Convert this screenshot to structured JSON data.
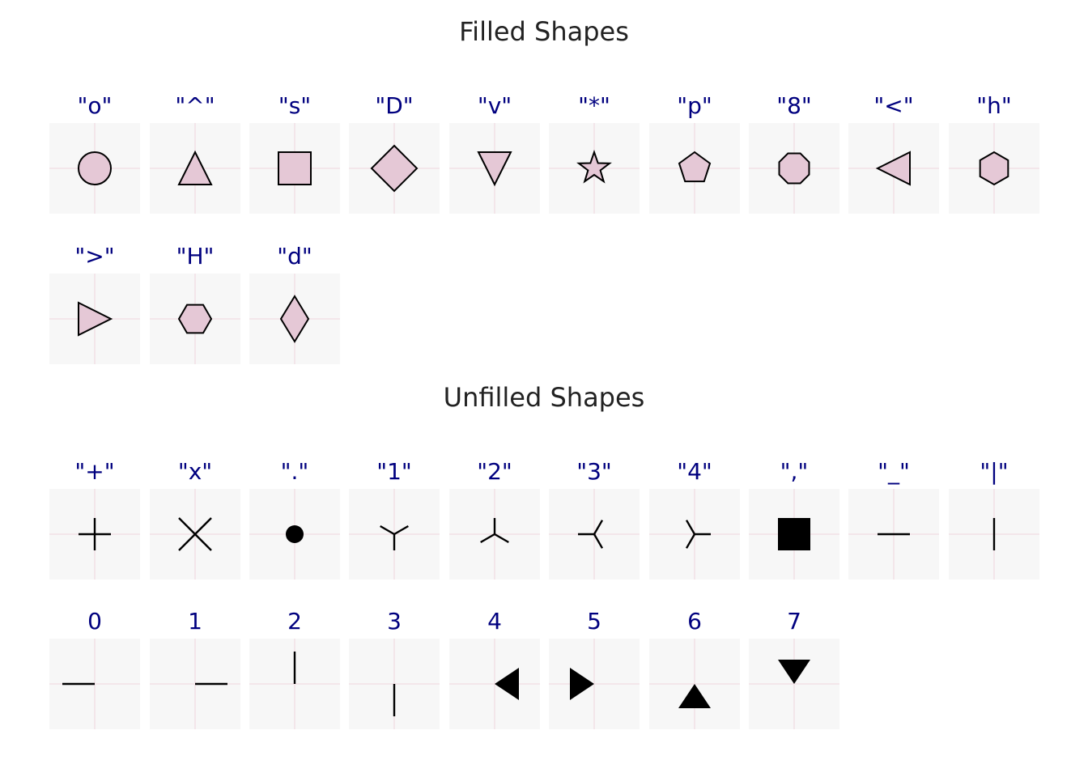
{
  "colors": {
    "panel_bg": "#f7f7f7",
    "grid": "#f3e6ea",
    "fill": "#e5c8d6",
    "edge": "#000000",
    "label": "#00007f",
    "title": "#222222"
  },
  "sections": [
    {
      "title": "Filled Shapes",
      "rows": [
        [
          {
            "label": "\"o\"",
            "shape": "circle"
          },
          {
            "label": "\"^\"",
            "shape": "triangle-up"
          },
          {
            "label": "\"s\"",
            "shape": "square"
          },
          {
            "label": "\"D\"",
            "shape": "diamond"
          },
          {
            "label": "\"v\"",
            "shape": "triangle-down"
          },
          {
            "label": "\"*\"",
            "shape": "star"
          },
          {
            "label": "\"p\"",
            "shape": "pentagon"
          },
          {
            "label": "\"8\"",
            "shape": "octagon"
          },
          {
            "label": "\"<\"",
            "shape": "triangle-left"
          },
          {
            "label": "\"h\"",
            "shape": "hexagon-vertical"
          }
        ],
        [
          {
            "label": "\">\"",
            "shape": "triangle-right"
          },
          {
            "label": "\"H\"",
            "shape": "hexagon-horizontal"
          },
          {
            "label": "\"d\"",
            "shape": "thin-diamond"
          }
        ]
      ]
    },
    {
      "title": "Unfilled Shapes",
      "rows": [
        [
          {
            "label": "\"+\"",
            "shape": "plus"
          },
          {
            "label": "\"x\"",
            "shape": "x"
          },
          {
            "label": "\".\"",
            "shape": "point"
          },
          {
            "label": "\"1\"",
            "shape": "tri-down"
          },
          {
            "label": "\"2\"",
            "shape": "tri-up"
          },
          {
            "label": "\"3\"",
            "shape": "tri-left"
          },
          {
            "label": "\"4\"",
            "shape": "tri-right"
          },
          {
            "label": "\",\"",
            "shape": "pixel"
          },
          {
            "label": "\"_\"",
            "shape": "hline"
          },
          {
            "label": "\"|\"",
            "shape": "vline"
          }
        ],
        [
          {
            "label": "0",
            "shape": "tickleft"
          },
          {
            "label": "1",
            "shape": "tickright"
          },
          {
            "label": "2",
            "shape": "tickup"
          },
          {
            "label": "3",
            "shape": "tickdown"
          },
          {
            "label": "4",
            "shape": "caretleft"
          },
          {
            "label": "5",
            "shape": "caretright"
          },
          {
            "label": "6",
            "shape": "caretup"
          },
          {
            "label": "7",
            "shape": "caretdown"
          }
        ]
      ]
    }
  ]
}
